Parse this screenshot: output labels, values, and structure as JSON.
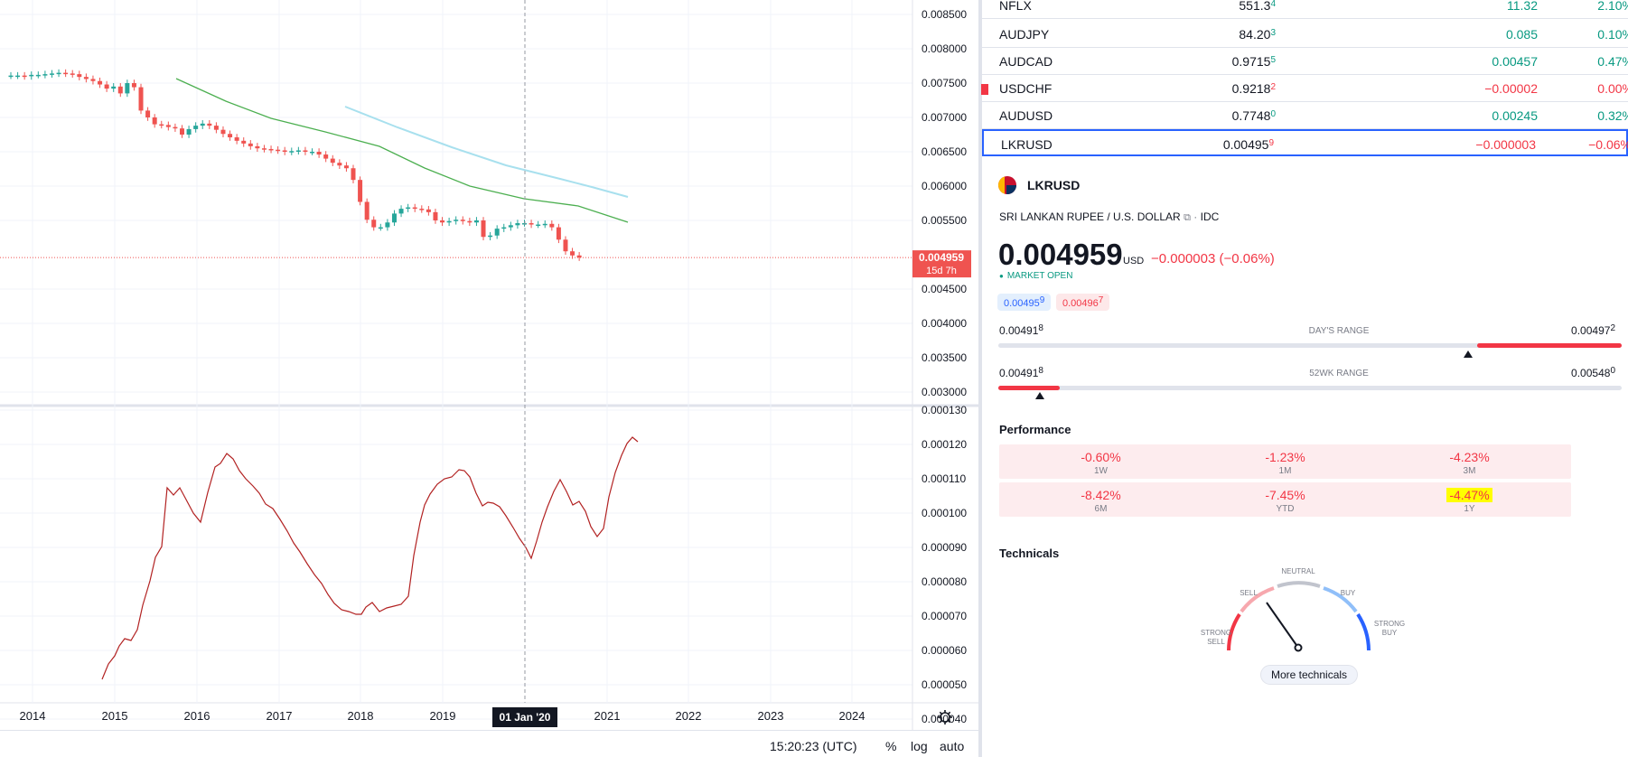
{
  "chart": {
    "price_ticks": [
      "0.008500",
      "0.008000",
      "0.007500",
      "0.007000",
      "0.006500",
      "0.006000",
      "0.005500",
      "0.004500",
      "0.004000",
      "0.003500",
      "0.003000"
    ],
    "indicator_ticks": [
      "0.000130",
      "0.000120",
      "0.000110",
      "0.000100",
      "0.000090",
      "0.000080",
      "0.000070",
      "0.000060",
      "0.000050",
      "0.000040"
    ],
    "years": [
      "2014",
      "2015",
      "2016",
      "2017",
      "2018",
      "2019",
      "2021",
      "2022",
      "2023",
      "2024"
    ],
    "crosshair_date": "01 Jan '20",
    "last_price_label": "0.004959",
    "countdown": "15d 7h",
    "colors": {
      "up": "#26a69a",
      "down": "#ef5350",
      "ma_green": "#4caf50",
      "ma_light": "#a8e0ee",
      "indicator": "#b22222"
    }
  },
  "status_bar": {
    "time": "15:20:23 (UTC)",
    "percent": "%",
    "log": "log",
    "auto": "auto",
    "settings_icon": "gear-icon"
  },
  "watchlist": [
    {
      "symbol": "NFLX",
      "last_main": "551.3",
      "last_sup": "4",
      "change": "11.32",
      "pct": "2.10%",
      "dir": "pos"
    },
    {
      "symbol": "AUDJPY",
      "last_main": "84.20",
      "last_sup": "3",
      "change": "0.085",
      "pct": "0.10%",
      "dir": "pos"
    },
    {
      "symbol": "AUDCAD",
      "last_main": "0.9715",
      "last_sup": "5",
      "change": "0.00457",
      "pct": "0.47%",
      "dir": "pos"
    },
    {
      "symbol": "USDCHF",
      "last_main": "0.9218",
      "last_sup": "2",
      "change": "−0.00002",
      "pct": "0.00%",
      "dir": "neg"
    },
    {
      "symbol": "AUDUSD",
      "last_main": "0.7748",
      "last_sup": "0",
      "change": "0.00245",
      "pct": "0.32%",
      "dir": "pos"
    },
    {
      "symbol": "LKRUSD",
      "last_main": "0.00495",
      "last_sup": "9",
      "change": "−0.000003",
      "pct": "−0.06%",
      "dir": "neg"
    }
  ],
  "details": {
    "symbol": "LKRUSD",
    "description": "SRI LANKAN RUPEE / U.S. DOLLAR",
    "exchange": "IDC",
    "price": "0.004959",
    "currency": "USD",
    "change": "−0.000003 (−0.06%)",
    "market_status": "MARKET OPEN",
    "bid_main": "0.00495",
    "bid_sup": "9",
    "ask_main": "0.00496",
    "ask_sup": "7",
    "days_range": {
      "label": "DAY'S RANGE",
      "low_main": "0.00491",
      "low_sup": "8",
      "high_main": "0.00497",
      "high_sup": "2"
    },
    "wk52_range": {
      "label": "52WK RANGE",
      "low_main": "0.00491",
      "low_sup": "8",
      "high_main": "0.00548",
      "high_sup": "0"
    }
  },
  "performance": {
    "title": "Performance",
    "items": [
      {
        "value": "-0.60%",
        "label": "1W"
      },
      {
        "value": "-1.23%",
        "label": "1M"
      },
      {
        "value": "-4.23%",
        "label": "3M"
      },
      {
        "value": "-8.42%",
        "label": "6M"
      },
      {
        "value": "-7.45%",
        "label": "YTD"
      },
      {
        "value": "-4.47%",
        "label": "1Y"
      }
    ]
  },
  "technicals": {
    "title": "Technicals",
    "labels": {
      "strong_sell_1": "STRONG",
      "strong_sell_2": "SELL",
      "sell": "SELL",
      "neutral": "NEUTRAL",
      "buy": "BUY",
      "strong_buy_1": "STRONG",
      "strong_buy_2": "BUY"
    },
    "more_button": "More technicals"
  }
}
